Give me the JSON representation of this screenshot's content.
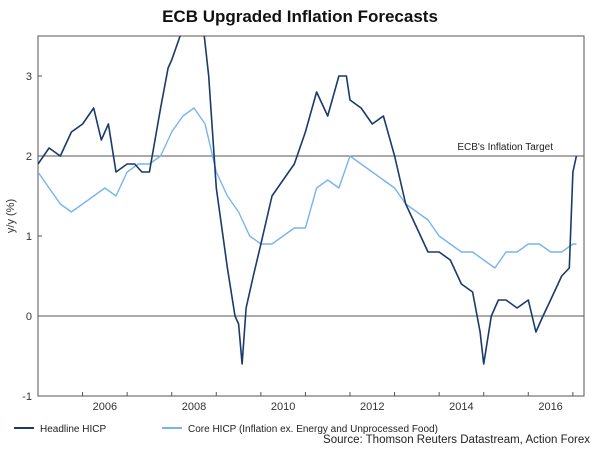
{
  "chart_data": {
    "type": "line",
    "title": "ECB Upgraded Inflation Forecasts",
    "ylabel": "y/y (%)",
    "ylim": [
      -1,
      3.5
    ],
    "xlim": [
      2005.0,
      2017.25
    ],
    "yticks": [
      -1,
      0,
      1,
      2,
      3
    ],
    "xticks": [
      2006,
      2008,
      2010,
      2012,
      2014,
      2016
    ],
    "grid": false,
    "legend_position": "bottom",
    "annotations": [
      {
        "text": "ECB's Inflation Target",
        "y": 2
      }
    ],
    "reference_lines": [
      2,
      0
    ],
    "source": "Source: Thomson Reuters Datastream, Action Forex",
    "series": [
      {
        "name": "Headline HICP",
        "color": "#1a3a6b",
        "x": [
          2005.0,
          2005.25,
          2005.5,
          2005.75,
          2006.0,
          2006.25,
          2006.42,
          2006.58,
          2006.75,
          2007.0,
          2007.17,
          2007.33,
          2007.5,
          2007.75,
          2007.92,
          2008.0,
          2008.25,
          2008.5,
          2008.67,
          2008.83,
          2009.0,
          2009.25,
          2009.42,
          2009.5,
          2009.58,
          2009.67,
          2009.83,
          2010.0,
          2010.25,
          2010.5,
          2010.75,
          2011.0,
          2011.25,
          2011.5,
          2011.75,
          2011.92,
          2012.0,
          2012.25,
          2012.5,
          2012.75,
          2013.0,
          2013.25,
          2013.5,
          2013.75,
          2014.0,
          2014.25,
          2014.5,
          2014.75,
          2014.92,
          2015.0,
          2015.17,
          2015.33,
          2015.5,
          2015.75,
          2016.0,
          2016.17,
          2016.33,
          2016.5,
          2016.75,
          2016.92,
          2017.0,
          2017.08
        ],
        "values": [
          1.9,
          2.1,
          2.0,
          2.3,
          2.4,
          2.6,
          2.2,
          2.4,
          1.8,
          1.9,
          1.9,
          1.8,
          1.8,
          2.6,
          3.1,
          3.2,
          3.6,
          4.0,
          3.8,
          3.0,
          1.6,
          0.6,
          0.0,
          -0.1,
          -0.6,
          0.1,
          0.5,
          0.9,
          1.5,
          1.7,
          1.9,
          2.3,
          2.8,
          2.5,
          3.0,
          3.0,
          2.7,
          2.6,
          2.4,
          2.5,
          2.0,
          1.4,
          1.1,
          0.8,
          0.8,
          0.7,
          0.4,
          0.3,
          -0.2,
          -0.6,
          0.0,
          0.2,
          0.2,
          0.1,
          0.2,
          -0.2,
          0.0,
          0.2,
          0.5,
          0.6,
          1.8,
          2.0
        ]
      },
      {
        "name": "Core HICP (Inflation ex. Energy and Unprocessed Food)",
        "color": "#79b4ee",
        "x": [
          2005.0,
          2005.25,
          2005.5,
          2005.75,
          2006.0,
          2006.25,
          2006.5,
          2006.75,
          2007.0,
          2007.25,
          2007.5,
          2007.75,
          2008.0,
          2008.25,
          2008.5,
          2008.75,
          2009.0,
          2009.25,
          2009.5,
          2009.75,
          2010.0,
          2010.25,
          2010.5,
          2010.75,
          2011.0,
          2011.25,
          2011.5,
          2011.75,
          2012.0,
          2012.25,
          2012.5,
          2012.75,
          2013.0,
          2013.25,
          2013.5,
          2013.75,
          2014.0,
          2014.25,
          2014.5,
          2014.75,
          2015.0,
          2015.25,
          2015.5,
          2015.75,
          2016.0,
          2016.25,
          2016.5,
          2016.75,
          2017.0,
          2017.08
        ],
        "values": [
          1.8,
          1.6,
          1.4,
          1.3,
          1.4,
          1.5,
          1.6,
          1.5,
          1.8,
          1.9,
          1.9,
          2.0,
          2.3,
          2.5,
          2.6,
          2.4,
          1.8,
          1.5,
          1.3,
          1.0,
          0.9,
          0.9,
          1.0,
          1.1,
          1.1,
          1.6,
          1.7,
          1.6,
          2.0,
          1.9,
          1.8,
          1.7,
          1.6,
          1.4,
          1.3,
          1.2,
          1.0,
          0.9,
          0.8,
          0.8,
          0.7,
          0.6,
          0.8,
          0.8,
          0.9,
          0.9,
          0.8,
          0.8,
          0.9,
          0.9
        ]
      }
    ]
  }
}
